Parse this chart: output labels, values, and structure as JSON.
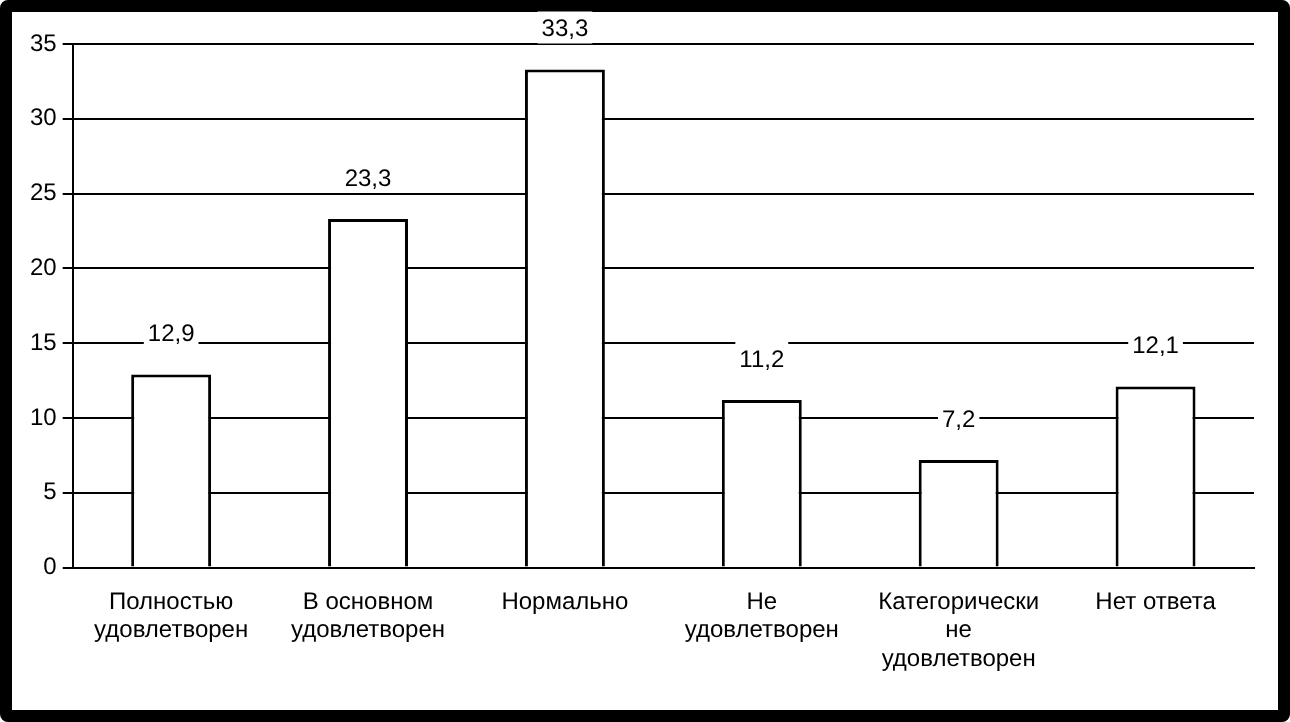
{
  "chart_data": {
    "type": "bar",
    "categories": [
      "Полностью удовлетворен",
      "В основном удовлетворен",
      "Нормально",
      "Не удовлетворен",
      "Категорически не удовлетворен",
      "Нет ответа"
    ],
    "values": [
      12.9,
      23.3,
      33.3,
      11.2,
      7.2,
      12.1
    ],
    "value_labels": [
      "12,9",
      "23,3",
      "33,3",
      "11,2",
      "7,2",
      "12,1"
    ],
    "color": "#ffffff",
    "ylim": [
      0,
      35
    ],
    "yticks": [
      0,
      5,
      10,
      15,
      20,
      25,
      30,
      35
    ],
    "grid": "y"
  }
}
